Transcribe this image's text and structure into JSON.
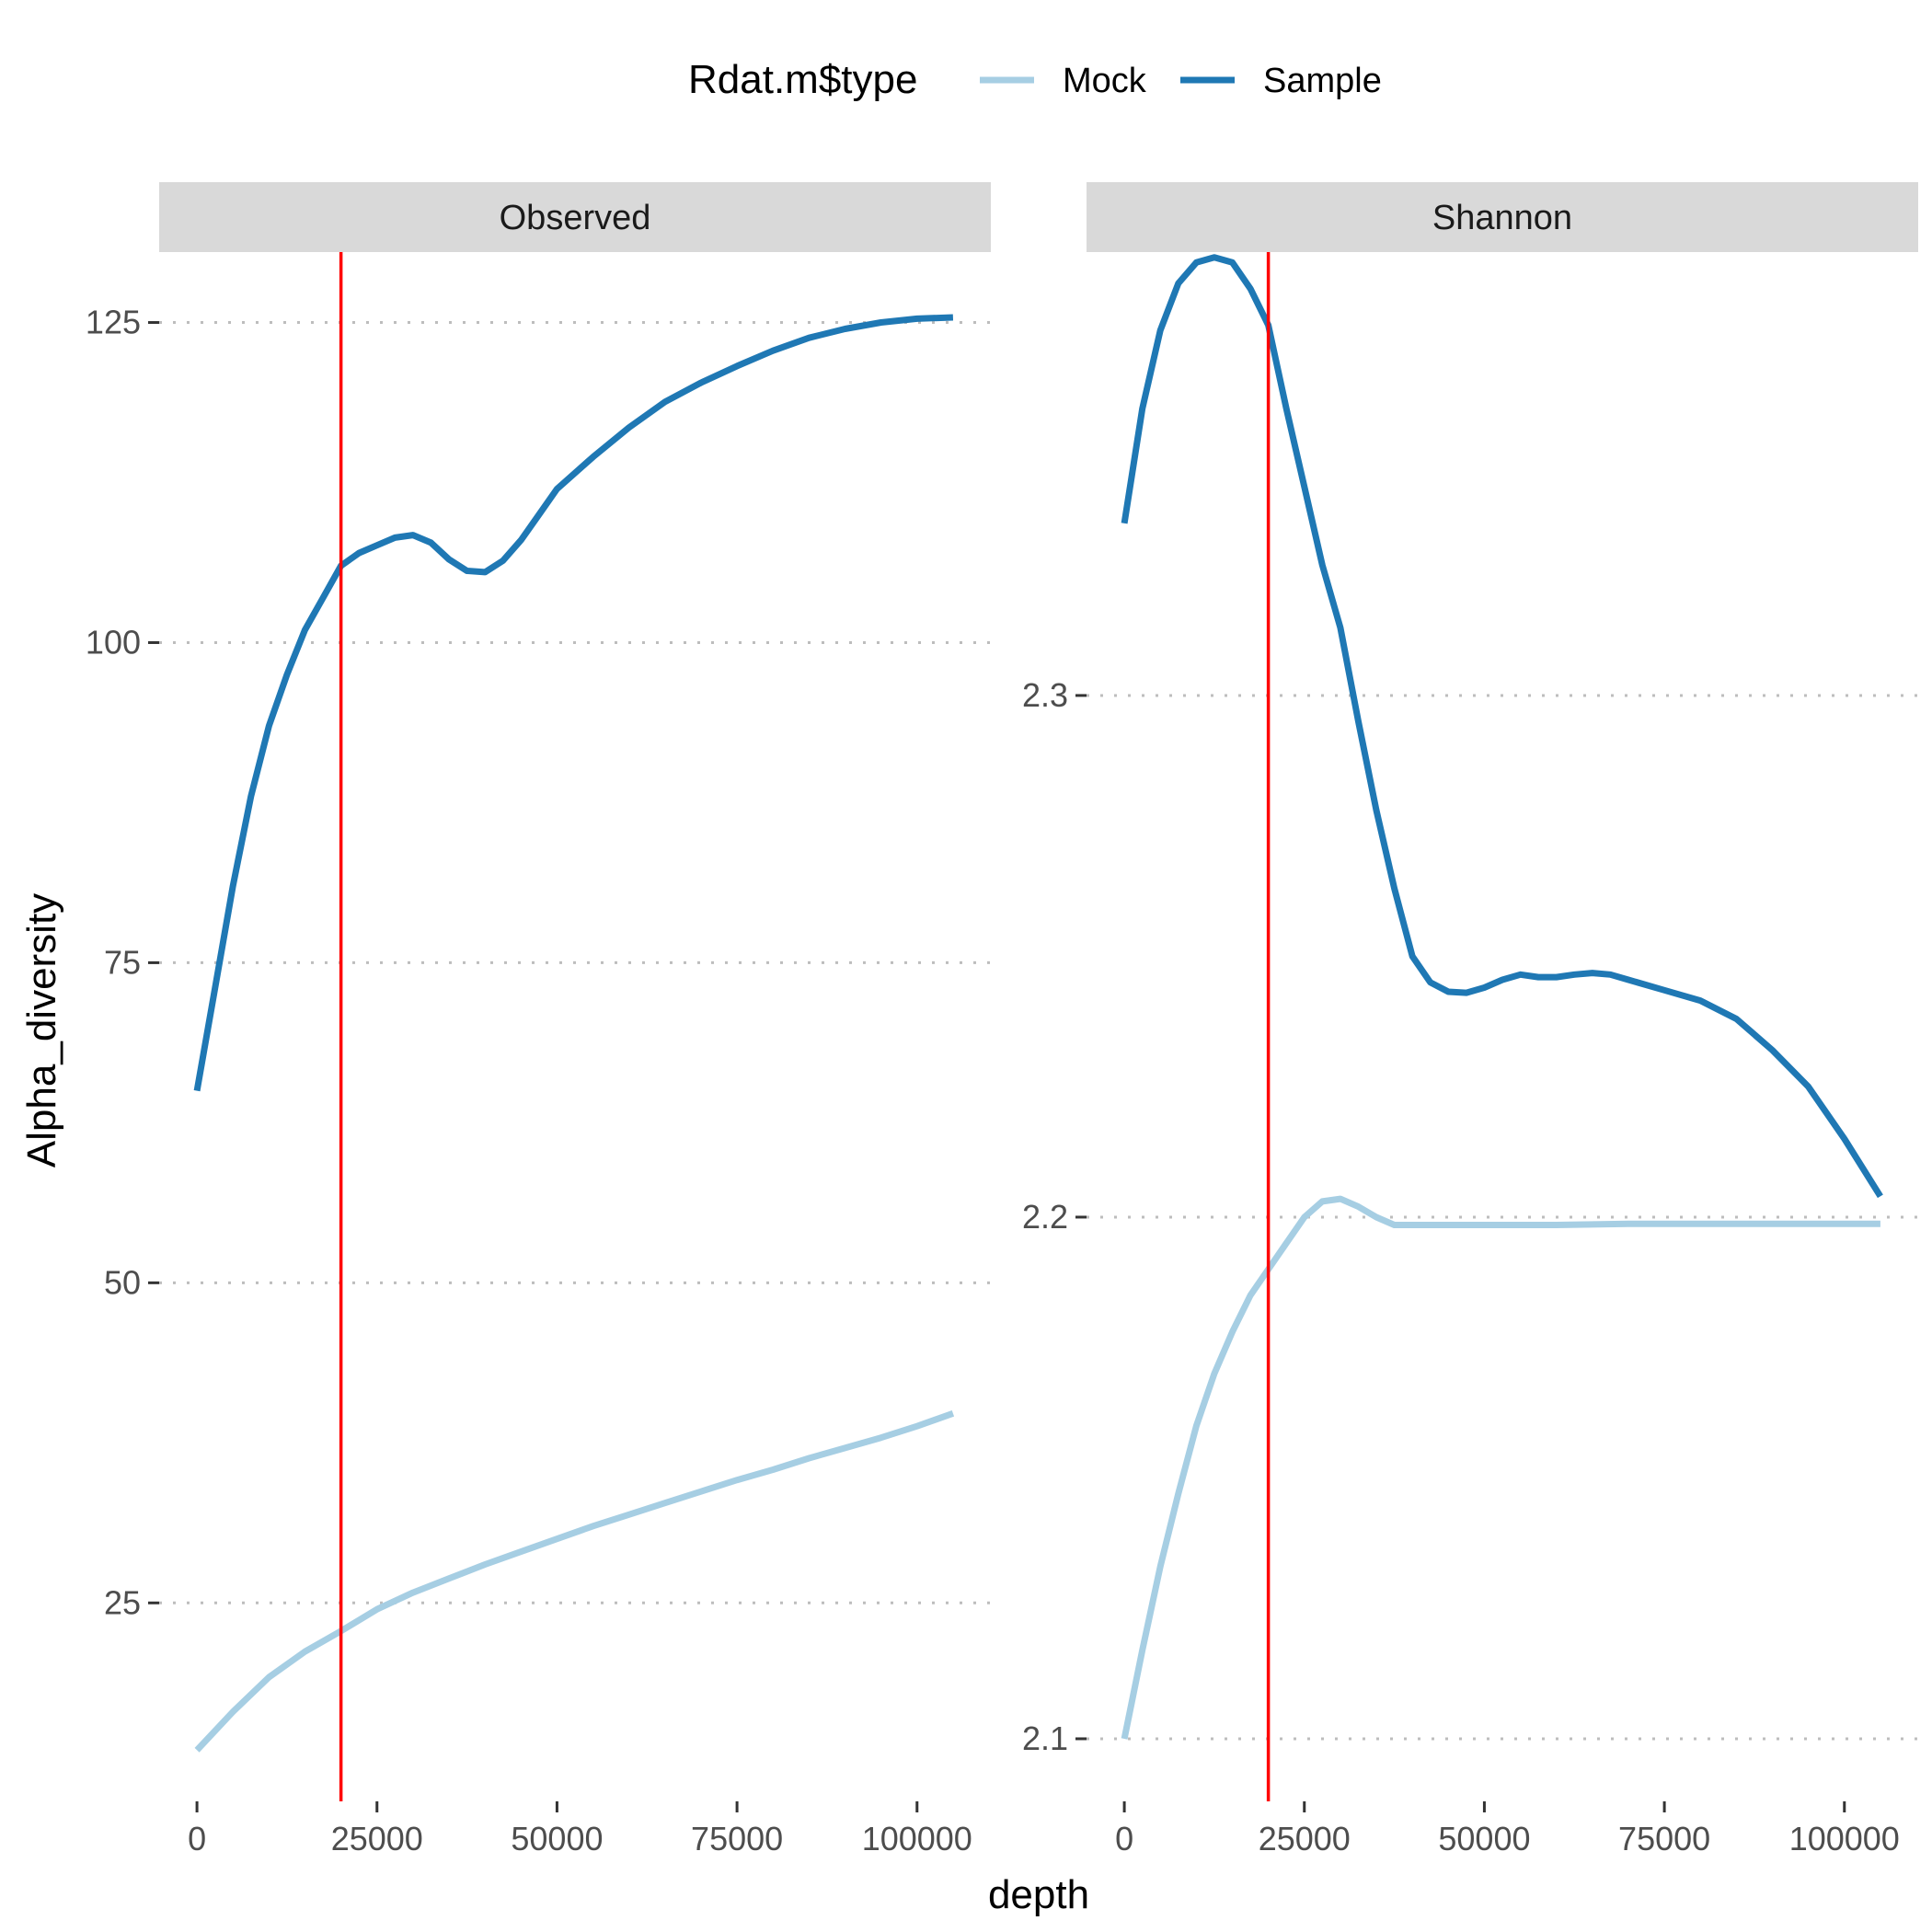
{
  "legend": {
    "title": "Rdat.m$type",
    "placement": "top",
    "entries": [
      {
        "label": "Mock",
        "color": "#a6cee3"
      },
      {
        "label": "Sample",
        "color": "#1f78b4"
      }
    ]
  },
  "axes": {
    "xlabel": "depth",
    "ylabel": "Alpha_diversity"
  },
  "reference_line": {
    "x": 20000,
    "color": "#ff0000"
  },
  "chart_data": [
    {
      "type": "line",
      "panel": "Observed",
      "xlim": [
        -5250,
        110250
      ],
      "ylim": [
        9.5,
        130.5
      ],
      "x_ticks": [
        0,
        25000,
        50000,
        75000,
        100000
      ],
      "x_tick_labels": [
        "0",
        "25000",
        "50000",
        "75000",
        "100000"
      ],
      "y_ticks": [
        25,
        50,
        75,
        100,
        125
      ],
      "y_tick_labels": [
        "25",
        "50",
        "75",
        "100",
        "125"
      ],
      "grid": "horizontal-dotted",
      "series": [
        {
          "name": "Mock",
          "color": "#a6cee3",
          "x": [
            0,
            5000,
            10000,
            15000,
            20000,
            25000,
            30000,
            35000,
            40000,
            45000,
            50000,
            55000,
            60000,
            65000,
            70000,
            75000,
            80000,
            85000,
            90000,
            95000,
            100000,
            105000
          ],
          "y": [
            13.5,
            16.5,
            19.2,
            21.2,
            22.8,
            24.5,
            25.8,
            26.9,
            28.0,
            29.0,
            30.0,
            31.0,
            31.9,
            32.8,
            33.7,
            34.6,
            35.4,
            36.3,
            37.1,
            37.9,
            38.8,
            39.8
          ]
        },
        {
          "name": "Sample",
          "color": "#1f78b4",
          "x": [
            0,
            2500,
            5000,
            7500,
            10000,
            12500,
            15000,
            17500,
            20000,
            22500,
            25000,
            27500,
            30000,
            32500,
            35000,
            37500,
            40000,
            42500,
            45000,
            47500,
            50000,
            55000,
            60000,
            65000,
            70000,
            75000,
            80000,
            85000,
            90000,
            95000,
            100000,
            105000
          ],
          "y": [
            65,
            73,
            81,
            88,
            93.5,
            97.5,
            101,
            103.5,
            106,
            107,
            107.6,
            108.2,
            108.4,
            107.8,
            106.5,
            105.6,
            105.5,
            106.4,
            108,
            110,
            112,
            114.5,
            116.8,
            118.8,
            120.3,
            121.6,
            122.8,
            123.8,
            124.5,
            125.0,
            125.3,
            125.4
          ]
        }
      ]
    },
    {
      "type": "line",
      "panel": "Shannon",
      "xlim": [
        -5250,
        110250
      ],
      "ylim": [
        2.088,
        2.385
      ],
      "x_ticks": [
        0,
        25000,
        50000,
        75000,
        100000
      ],
      "x_tick_labels": [
        "0",
        "25000",
        "50000",
        "75000",
        "100000"
      ],
      "y_ticks": [
        2.1,
        2.2,
        2.3
      ],
      "y_tick_labels": [
        "2.1",
        "2.2",
        "2.3"
      ],
      "grid": "horizontal-dotted",
      "series": [
        {
          "name": "Mock",
          "color": "#a6cee3",
          "x": [
            0,
            2500,
            5000,
            7500,
            10000,
            12500,
            15000,
            17500,
            20000,
            22500,
            25000,
            27500,
            30000,
            32500,
            35000,
            37500,
            40000,
            45000,
            50000,
            55000,
            60000,
            70000,
            80000,
            90000,
            100000,
            105000
          ],
          "y": [
            2.1,
            2.117,
            2.133,
            2.147,
            2.16,
            2.17,
            2.178,
            2.185,
            2.19,
            2.195,
            2.2,
            2.203,
            2.2035,
            2.202,
            2.2,
            2.1985,
            2.1985,
            2.1985,
            2.1985,
            2.1985,
            2.1985,
            2.1987,
            2.1987,
            2.1987,
            2.1987,
            2.1987
          ]
        },
        {
          "name": "Sample",
          "color": "#1f78b4",
          "x": [
            0,
            2500,
            5000,
            7500,
            10000,
            12500,
            15000,
            17500,
            20000,
            22500,
            25000,
            27500,
            30000,
            32500,
            35000,
            37500,
            40000,
            42500,
            45000,
            47500,
            50000,
            52500,
            55000,
            57500,
            60000,
            62500,
            65000,
            67500,
            70000,
            75000,
            80000,
            85000,
            90000,
            95000,
            100000,
            105000
          ],
          "y": [
            2.333,
            2.355,
            2.37,
            2.379,
            2.383,
            2.384,
            2.383,
            2.378,
            2.371,
            2.355,
            2.34,
            2.325,
            2.313,
            2.295,
            2.278,
            2.263,
            2.25,
            2.245,
            2.2432,
            2.243,
            2.244,
            2.2455,
            2.2465,
            2.246,
            2.246,
            2.2465,
            2.2468,
            2.2465,
            2.2455,
            2.2435,
            2.2415,
            2.238,
            2.232,
            2.225,
            2.215,
            2.204
          ]
        }
      ]
    }
  ]
}
